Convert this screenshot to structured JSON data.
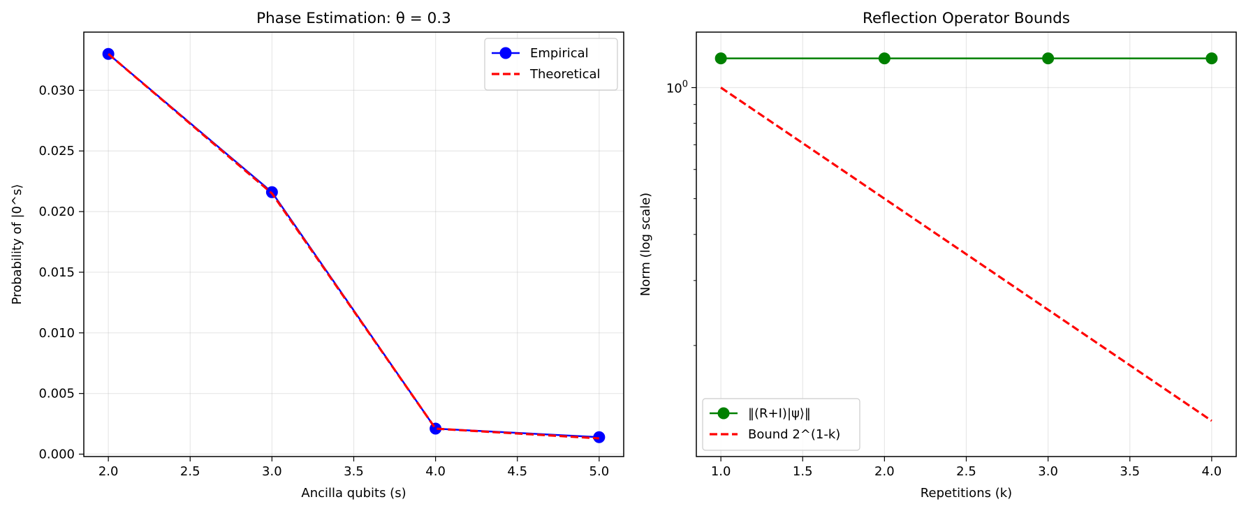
{
  "chart_data": [
    {
      "type": "line",
      "title": "Phase Estimation: θ = 0.3",
      "xlabel": "Ancilla qubits (s)",
      "ylabel": "Probability of |0^s⟩",
      "xlim": [
        1.85,
        5.15
      ],
      "ylim": [
        -0.0002,
        0.0348
      ],
      "xticks": [
        2.0,
        2.5,
        3.0,
        3.5,
        4.0,
        4.5,
        5.0
      ],
      "xtick_labels": [
        "2.0",
        "2.5",
        "3.0",
        "3.5",
        "4.0",
        "4.5",
        "5.0"
      ],
      "yticks": [
        0.0,
        0.005,
        0.01,
        0.015,
        0.02,
        0.025,
        0.03
      ],
      "ytick_labels": [
        "0.000",
        "0.005",
        "0.010",
        "0.015",
        "0.020",
        "0.025",
        "0.030"
      ],
      "grid": true,
      "legend_position": "top-right",
      "x": [
        2,
        3,
        4,
        5
      ],
      "series": [
        {
          "name": "Empirical",
          "values": [
            0.033,
            0.0216,
            0.0021,
            0.0014
          ],
          "color": "#0000ff",
          "style": "solid-marker"
        },
        {
          "name": "Theoretical",
          "values": [
            0.033,
            0.0215,
            0.0021,
            0.0013
          ],
          "color": "#ff0000",
          "style": "dashed"
        }
      ]
    },
    {
      "type": "line",
      "title": "Reflection Operator Bounds",
      "xlabel": "Repetitions (k)",
      "ylabel": "Norm (log scale)",
      "yscale": "log",
      "xlim": [
        0.85,
        4.15
      ],
      "ylim": [
        0.1,
        1.414
      ],
      "xticks": [
        1.0,
        1.5,
        2.0,
        2.5,
        3.0,
        3.5,
        4.0
      ],
      "xtick_labels": [
        "1.0",
        "1.5",
        "2.0",
        "2.5",
        "3.0",
        "3.5",
        "4.0"
      ],
      "ytick_major": [
        1.0
      ],
      "ytick_major_labels": [
        "10",
        "0"
      ],
      "ytick_minor": [
        0.2,
        0.3,
        0.4,
        0.5,
        0.6,
        0.7,
        0.8,
        0.9
      ],
      "grid": true,
      "legend_position": "bottom-left",
      "x": [
        1,
        2,
        3,
        4
      ],
      "series": [
        {
          "name": "‖(R+I)|ψ⟩‖",
          "values": [
            1.2,
            1.2,
            1.2,
            1.2
          ],
          "color": "#008000",
          "style": "solid-marker"
        },
        {
          "name": "Bound 2^(1-k)",
          "values": [
            1.0,
            0.5,
            0.25,
            0.125
          ],
          "color": "#ff0000",
          "style": "dashed"
        }
      ]
    }
  ]
}
